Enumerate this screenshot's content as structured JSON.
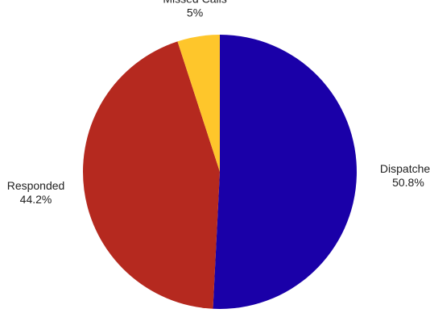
{
  "chart_data": {
    "type": "pie",
    "title": "",
    "start_angle_deg": 90,
    "direction": "clockwise",
    "slices": [
      {
        "label": "Dispatched",
        "value": 50.8,
        "display": "50.8%",
        "color": "#1a00a8"
      },
      {
        "label": "Responded",
        "value": 44.2,
        "display": "44.2%",
        "color": "#b5291f"
      },
      {
        "label": "Missed Calls",
        "value": 5,
        "display": "5%",
        "color": "#fec62b"
      }
    ]
  }
}
